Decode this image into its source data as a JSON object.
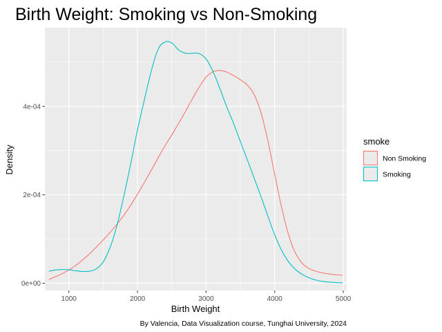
{
  "chart_data": {
    "type": "line",
    "title": "Birth Weight: Smoking vs Non-Smoking",
    "xlabel": "Birth Weight",
    "ylabel": "Density",
    "caption": "By Valencia, Data Visualization course, Tunghai University, 2024",
    "xlim": [
      650,
      5050
    ],
    "ylim": [
      -1.65e-05,
      0.000578
    ],
    "x_ticks": [
      1000,
      2000,
      3000,
      4000,
      5000
    ],
    "x_tick_labels": [
      "1000",
      "2000",
      "3000",
      "4000",
      "5000"
    ],
    "y_ticks": [
      0,
      0.0002,
      0.0004
    ],
    "y_tick_labels": [
      "0e+00",
      "2e-04",
      "4e-04"
    ],
    "legend": {
      "title": "smoke",
      "position": "right"
    },
    "colors": {
      "panel": "#ebebeb",
      "grid": "#ffffff",
      "non_smoking": "#f8766d",
      "smoking": "#00bfc4"
    },
    "series": [
      {
        "name": "Non Smoking",
        "color": "#f8766d",
        "x": [
          709,
          800,
          900,
          1000,
          1100,
          1200,
          1300,
          1400,
          1500,
          1600,
          1700,
          1800,
          1900,
          2000,
          2100,
          2200,
          2300,
          2400,
          2500,
          2600,
          2700,
          2800,
          2900,
          3000,
          3100,
          3200,
          3300,
          3400,
          3500,
          3600,
          3700,
          3800,
          3900,
          4000,
          4100,
          4200,
          4300,
          4400,
          4500,
          4600,
          4700,
          4800,
          4900,
          4990
        ],
        "y": [
          8.6e-06,
          1.44e-05,
          2.14e-05,
          3.01e-05,
          4.03e-05,
          5.27e-05,
          6.64e-05,
          8.17e-05,
          9.79e-05,
          0.0001148,
          0.0001334,
          0.0001534,
          0.0001762,
          0.0002013,
          0.0002279,
          0.0002552,
          0.0002833,
          0.0003107,
          0.0003352,
          0.0003617,
          0.0003887,
          0.0004171,
          0.0004438,
          0.0004662,
          0.0004782,
          0.0004811,
          0.0004777,
          0.0004695,
          0.0004602,
          0.0004486,
          0.0004268,
          0.0003861,
          0.0003228,
          0.0002462,
          0.0001724,
          0.0001109,
          6.89e-05,
          4.53e-05,
          3.33e-05,
          2.71e-05,
          2.33e-05,
          2.07e-05,
          1.89e-05,
          1.78e-05
        ]
      },
      {
        "name": "Smoking",
        "color": "#00bfc4",
        "x": [
          709,
          800,
          900,
          1000,
          1100,
          1200,
          1300,
          1400,
          1500,
          1600,
          1700,
          1800,
          1900,
          2000,
          2100,
          2200,
          2300,
          2400,
          2500,
          2600,
          2700,
          2800,
          2900,
          3000,
          3100,
          3200,
          3300,
          3400,
          3500,
          3600,
          3700,
          3800,
          3900,
          4000,
          4100,
          4200,
          4300,
          4400,
          4500,
          4600,
          4700,
          4800,
          4900,
          4990
        ],
        "y": [
          2.71e-05,
          2.97e-05,
          3.1e-05,
          3.03e-05,
          2.82e-05,
          2.65e-05,
          2.71e-05,
          3.25e-05,
          4.82e-05,
          8.07e-05,
          0.00013,
          0.0001962,
          0.0002692,
          0.0003467,
          0.0004143,
          0.0004793,
          0.000529,
          0.0005456,
          0.0005435,
          0.0005276,
          0.00052,
          0.00052,
          0.0005193,
          0.0005072,
          0.0004792,
          0.0004409,
          0.0003992,
          0.0003616,
          0.0003206,
          0.0002796,
          0.0002382,
          0.0001962,
          0.0001522,
          0.0001096,
          7.49e-05,
          4.9e-05,
          3.15e-05,
          2e-05,
          1.23e-05,
          7.2e-06,
          4.1e-06,
          2.3e-06,
          1.4e-06,
          1e-06
        ]
      }
    ]
  }
}
